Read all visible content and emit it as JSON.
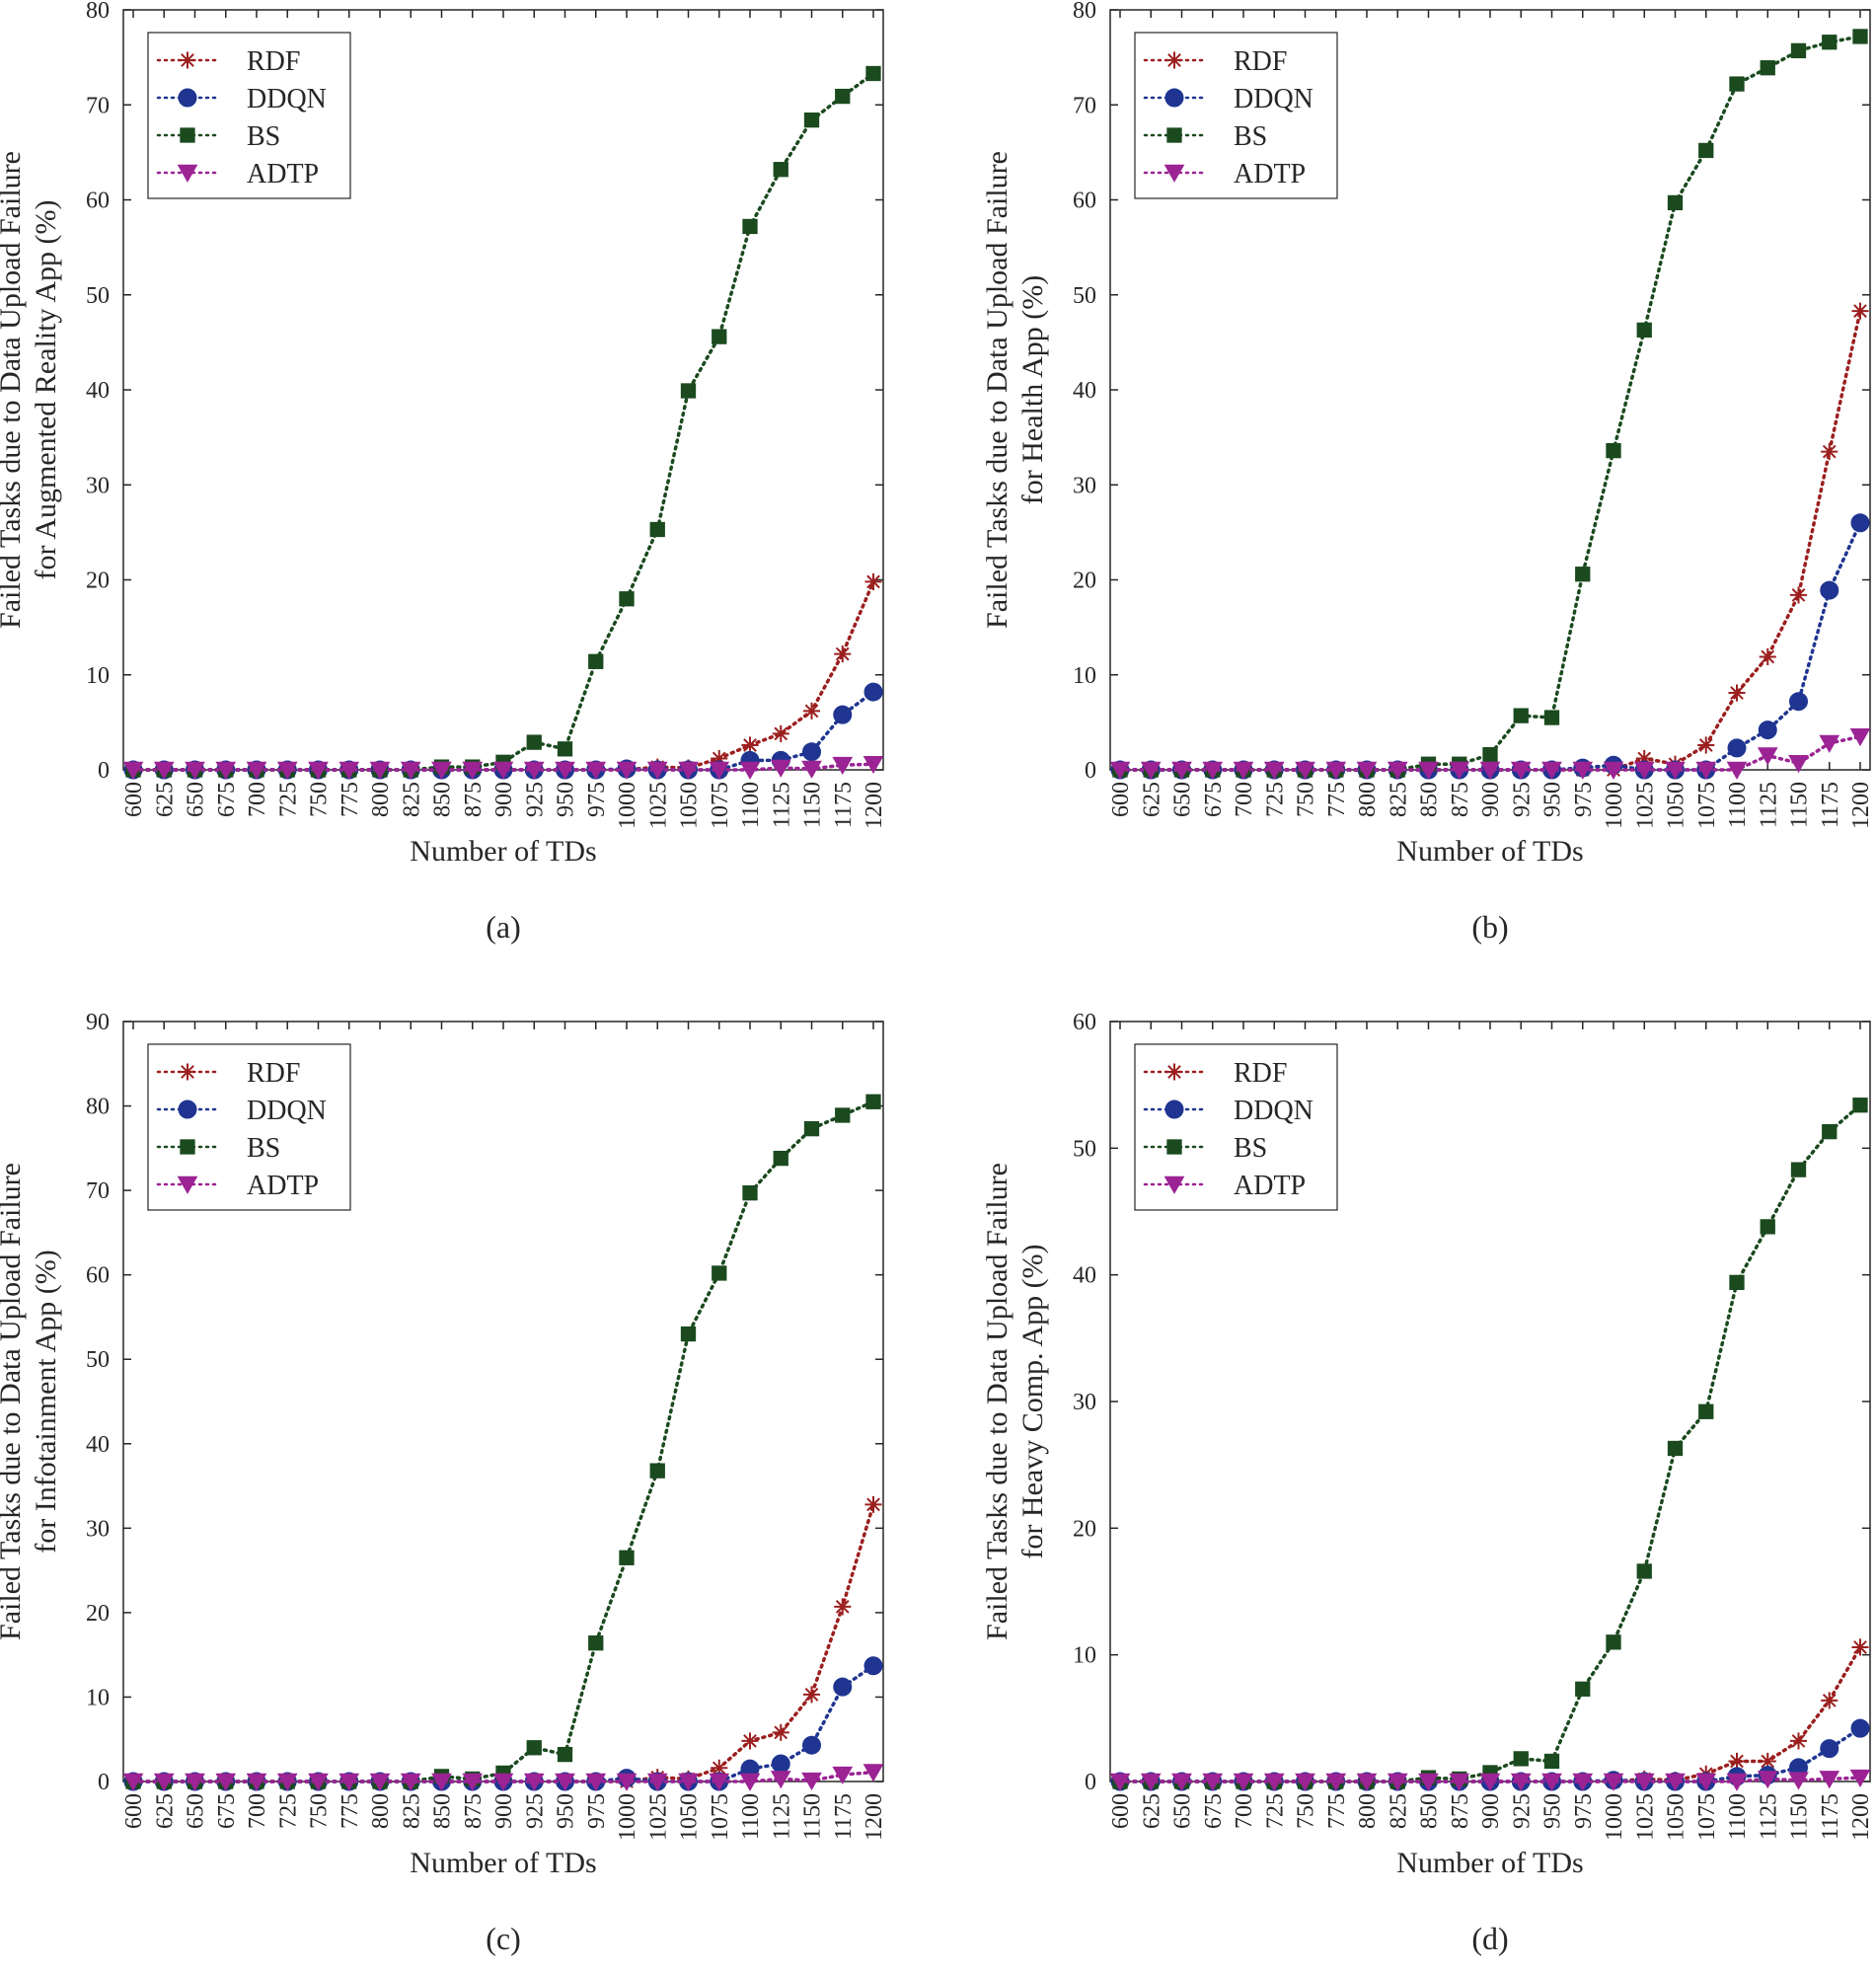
{
  "chart_data": [
    {
      "type": "line",
      "caption": "(a)",
      "xlabel": "Number of TDs",
      "ylabel": [
        "Failed Tasks due to Data Upload Failure",
        "for Augmented Reality App (%)"
      ],
      "ylim": [
        0,
        80
      ],
      "yticks": [
        0,
        10,
        20,
        30,
        40,
        50,
        60,
        70,
        80
      ],
      "x": [
        600,
        625,
        650,
        675,
        700,
        725,
        750,
        775,
        800,
        825,
        850,
        875,
        900,
        925,
        950,
        975,
        1000,
        1025,
        1050,
        1075,
        1100,
        1125,
        1150,
        1175,
        1200
      ],
      "legend_position": "top-left",
      "series": [
        {
          "name": "RDF",
          "color": "#9c1f1f",
          "marker": "asterisk",
          "values": [
            0,
            0,
            0,
            0,
            0,
            0,
            0,
            0,
            0,
            0,
            0,
            0,
            0,
            0,
            0,
            0,
            0,
            0.3,
            0.2,
            1.2,
            2.6,
            3.8,
            6.2,
            12.2,
            19.8
          ]
        },
        {
          "name": "DDQN",
          "color": "#1f3591",
          "marker": "circle",
          "values": [
            0,
            0,
            0,
            0,
            0,
            0,
            0,
            0,
            0,
            0,
            0,
            0,
            0,
            0,
            0,
            0,
            0.1,
            0,
            0,
            0,
            1.0,
            1.0,
            1.9,
            5.8,
            8.2
          ]
        },
        {
          "name": "BS",
          "color": "#1b4a1f",
          "marker": "square",
          "values": [
            0,
            0,
            0,
            0,
            0,
            0,
            0,
            0,
            0,
            0,
            0.3,
            0.3,
            0.8,
            2.9,
            2.2,
            11.4,
            18.0,
            25.3,
            39.9,
            45.6,
            57.2,
            63.2,
            68.4,
            70.9,
            73.3
          ]
        },
        {
          "name": "ADTP",
          "color": "#9b2394",
          "marker": "triangle",
          "values": [
            0,
            0,
            0,
            0,
            0,
            0,
            0,
            0,
            0,
            0,
            0,
            0,
            0,
            0,
            0,
            0,
            0,
            0,
            0,
            0,
            0,
            0.2,
            0.1,
            0.5,
            0.6
          ]
        }
      ]
    },
    {
      "type": "line",
      "caption": "(b)",
      "xlabel": "Number of TDs",
      "ylabel": [
        "Failed Tasks due to Data Upload Failure",
        "for Health App (%)"
      ],
      "ylim": [
        0,
        80
      ],
      "yticks": [
        0,
        10,
        20,
        30,
        40,
        50,
        60,
        70,
        80
      ],
      "x": [
        600,
        625,
        650,
        675,
        700,
        725,
        750,
        775,
        800,
        825,
        850,
        875,
        900,
        925,
        950,
        975,
        1000,
        1025,
        1050,
        1075,
        1100,
        1125,
        1150,
        1175,
        1200
      ],
      "legend_position": "top-left",
      "series": [
        {
          "name": "RDF",
          "color": "#9c1f1f",
          "marker": "asterisk",
          "values": [
            0,
            0,
            0,
            0,
            0,
            0,
            0,
            0,
            0,
            0,
            0,
            0,
            0,
            0,
            0,
            0,
            0,
            1.2,
            0.6,
            2.6,
            8.1,
            11.9,
            18.4,
            33.5,
            48.3
          ]
        },
        {
          "name": "DDQN",
          "color": "#1f3591",
          "marker": "circle",
          "values": [
            0,
            0,
            0,
            0,
            0,
            0,
            0,
            0,
            0,
            0,
            0,
            0,
            0,
            0,
            0,
            0.2,
            0.5,
            0,
            0,
            0,
            2.3,
            4.2,
            7.2,
            18.9,
            26.0
          ]
        },
        {
          "name": "BS",
          "color": "#1b4a1f",
          "marker": "square",
          "values": [
            0,
            0,
            0,
            0,
            0,
            0,
            0,
            0,
            0,
            0,
            0.6,
            0.6,
            1.6,
            5.7,
            5.5,
            20.6,
            33.6,
            46.3,
            59.7,
            65.2,
            72.2,
            73.9,
            75.7,
            76.6,
            77.2
          ]
        },
        {
          "name": "ADTP",
          "color": "#9b2394",
          "marker": "triangle",
          "values": [
            0,
            0,
            0,
            0,
            0,
            0,
            0,
            0,
            0,
            0,
            0,
            0,
            0,
            0,
            0,
            0,
            0,
            0,
            0,
            0,
            0,
            1.5,
            0.7,
            2.8,
            3.5
          ]
        }
      ]
    },
    {
      "type": "line",
      "caption": "(c)",
      "xlabel": "Number of TDs",
      "ylabel": [
        "Failed Tasks due to Data Upload Failure",
        "for Infotainment App (%)"
      ],
      "ylim": [
        0,
        90
      ],
      "yticks": [
        0,
        10,
        20,
        30,
        40,
        50,
        60,
        70,
        80,
        90
      ],
      "x": [
        600,
        625,
        650,
        675,
        700,
        725,
        750,
        775,
        800,
        825,
        850,
        875,
        900,
        925,
        950,
        975,
        1000,
        1025,
        1050,
        1075,
        1100,
        1125,
        1150,
        1175,
        1200
      ],
      "legend_position": "top-left",
      "series": [
        {
          "name": "RDF",
          "color": "#9c1f1f",
          "marker": "asterisk",
          "values": [
            0,
            0,
            0,
            0,
            0,
            0,
            0,
            0,
            0,
            0,
            0,
            0,
            0,
            0,
            0,
            0,
            0,
            0.5,
            0.3,
            1.6,
            4.8,
            5.8,
            10.3,
            20.7,
            32.8
          ]
        },
        {
          "name": "DDQN",
          "color": "#1f3591",
          "marker": "circle",
          "values": [
            0,
            0,
            0,
            0,
            0,
            0,
            0,
            0,
            0,
            0,
            0,
            0,
            0,
            0,
            0,
            0,
            0.4,
            0,
            0,
            0,
            1.5,
            2.1,
            4.3,
            11.2,
            13.7
          ]
        },
        {
          "name": "BS",
          "color": "#1b4a1f",
          "marker": "square",
          "values": [
            0,
            0,
            0,
            0,
            0,
            0,
            0,
            0,
            0,
            0,
            0.6,
            0.3,
            1.0,
            4.0,
            3.2,
            16.4,
            26.5,
            36.8,
            53.0,
            60.2,
            69.7,
            73.8,
            77.3,
            78.9,
            80.5
          ]
        },
        {
          "name": "ADTP",
          "color": "#9b2394",
          "marker": "triangle",
          "values": [
            0,
            0,
            0,
            0,
            0,
            0,
            0,
            0,
            0,
            0,
            0,
            0,
            0,
            0,
            0,
            0,
            0,
            0,
            0,
            0,
            0,
            0.3,
            0.1,
            0.8,
            1.1
          ]
        }
      ]
    },
    {
      "type": "line",
      "caption": "(d)",
      "xlabel": "Number of TDs",
      "ylabel": [
        "Failed Tasks due to Data Upload Failure",
        "for Heavy Comp. App (%)"
      ],
      "ylim": [
        0,
        60
      ],
      "yticks": [
        0,
        10,
        20,
        30,
        40,
        50,
        60
      ],
      "x": [
        600,
        625,
        650,
        675,
        700,
        725,
        750,
        775,
        800,
        825,
        850,
        875,
        900,
        925,
        950,
        975,
        1000,
        1025,
        1050,
        1075,
        1100,
        1125,
        1150,
        1175,
        1200
      ],
      "legend_position": "top-left",
      "series": [
        {
          "name": "RDF",
          "color": "#9c1f1f",
          "marker": "asterisk",
          "values": [
            0,
            0,
            0,
            0,
            0,
            0,
            0,
            0,
            0,
            0,
            0,
            0,
            0,
            0,
            0,
            0,
            0,
            0.2,
            0.1,
            0.6,
            1.6,
            1.6,
            3.2,
            6.4,
            10.6
          ]
        },
        {
          "name": "DDQN",
          "color": "#1f3591",
          "marker": "circle",
          "values": [
            0,
            0,
            0,
            0,
            0,
            0,
            0,
            0,
            0,
            0,
            0,
            0,
            0,
            0,
            0,
            0,
            0.1,
            0,
            0,
            0,
            0.4,
            0.5,
            1.1,
            2.6,
            4.2
          ]
        },
        {
          "name": "BS",
          "color": "#1b4a1f",
          "marker": "square",
          "values": [
            0,
            0,
            0,
            0,
            0,
            0,
            0,
            0,
            0,
            0,
            0.3,
            0.2,
            0.7,
            1.8,
            1.6,
            7.3,
            11.0,
            16.6,
            26.3,
            29.2,
            39.4,
            43.8,
            48.3,
            51.3,
            53.4
          ]
        },
        {
          "name": "ADTP",
          "color": "#9b2394",
          "marker": "triangle",
          "values": [
            0,
            0,
            0,
            0,
            0,
            0,
            0,
            0,
            0,
            0,
            0,
            0,
            0,
            0,
            0,
            0,
            0,
            0,
            0,
            0,
            0,
            0.2,
            0.1,
            0.2,
            0.3
          ]
        }
      ]
    }
  ]
}
